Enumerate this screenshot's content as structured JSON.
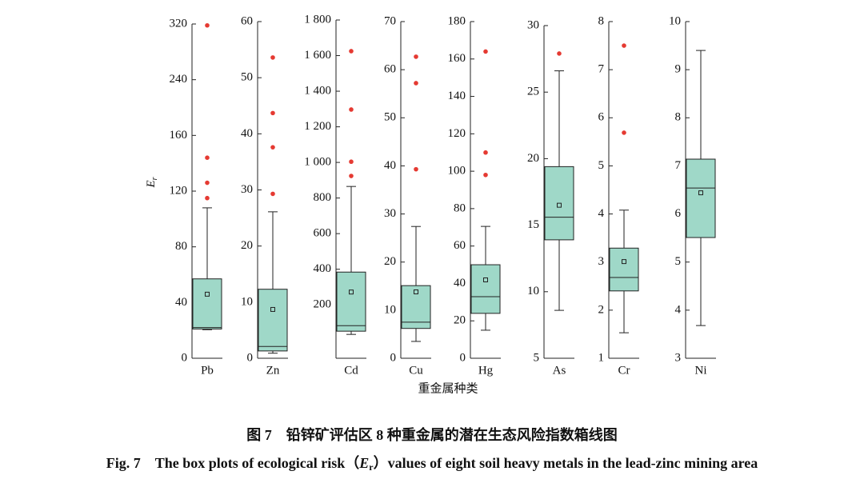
{
  "chart_data": [
    {
      "type": "box",
      "category": "Pb",
      "y_label": [
        "E",
        "r"
      ],
      "yscale": "tick-even",
      "ylim": [
        0,
        320
      ],
      "yticks": [
        0,
        40,
        80,
        120,
        160,
        240,
        320
      ],
      "whisker_low": 20.5,
      "q1": 21,
      "median": 22,
      "q3": 57,
      "whisker_high": 108,
      "mean": 46,
      "outliers": [
        318,
        144,
        126,
        115
      ],
      "color": "#9fd8c8",
      "outlier_color": "#e53a32"
    },
    {
      "type": "box",
      "category": "Zn",
      "yscale": "linear",
      "ylim": [
        0,
        60
      ],
      "yticks": [
        0,
        10,
        20,
        30,
        40,
        50,
        60
      ],
      "whisker_low": 0.9,
      "q1": 1.3,
      "median": 2.1,
      "q3": 12.3,
      "whisker_high": 26.1,
      "mean": 8.7,
      "outliers": [
        53.6,
        43.7,
        37.6,
        29.3
      ],
      "color": "#9fd8c8",
      "outlier_color": "#e53a32"
    },
    {
      "type": "box",
      "category": "Cd",
      "yscale": "linear",
      "ylim": [
        -100,
        1800
      ],
      "yticks": [
        200,
        400,
        600,
        800,
        {
          "value": 1000,
          "label": "1 000"
        },
        {
          "value": 1200,
          "label": "1 200"
        },
        {
          "value": 1400,
          "label": "1 400"
        },
        {
          "value": 1600,
          "label": "1 600"
        },
        {
          "value": 1800,
          "label": "1 800"
        }
      ],
      "whisker_low": 34,
      "q1": 52,
      "median": 83,
      "q3": 384,
      "whisker_high": 865,
      "mean": 272,
      "outliers": [
        1625,
        1297,
        1004,
        924
      ],
      "color": "#9fd8c8",
      "outlier_color": "#e53a32"
    },
    {
      "type": "box",
      "category": "Cu",
      "yscale": "linear",
      "ylim": [
        0,
        70
      ],
      "yticks": [
        0,
        10,
        20,
        30,
        40,
        50,
        60,
        70
      ],
      "whisker_low": 3.5,
      "q1": 6.2,
      "median": 7.5,
      "q3": 15.1,
      "whisker_high": 27.4,
      "mean": 13.8,
      "outliers": [
        62.7,
        57.2,
        39.3
      ],
      "color": "#9fd8c8",
      "outlier_color": "#e53a32"
    },
    {
      "type": "box",
      "category": "Hg",
      "yscale": "linear",
      "ylim": [
        0,
        180
      ],
      "yticks": [
        0,
        20,
        40,
        60,
        80,
        100,
        120,
        140,
        160,
        180
      ],
      "whisker_low": 15,
      "q1": 24,
      "median": 32.9,
      "q3": 50,
      "whisker_high": 70.5,
      "mean": 41.9,
      "outliers": [
        164,
        110,
        98
      ],
      "color": "#9fd8c8",
      "outlier_color": "#e53a32"
    },
    {
      "type": "box",
      "category": "As",
      "yscale": "linear",
      "ylim": [
        5,
        30
      ],
      "yticks": [
        5,
        10,
        15,
        20,
        25,
        30
      ],
      "whisker_low": 8.6,
      "q1": 13.9,
      "median": 15.6,
      "q3": 19.4,
      "whisker_high": 26.6,
      "mean": 16.5,
      "outliers": [
        27.9
      ],
      "color": "#9fd8c8",
      "outlier_color": "#e53a32"
    },
    {
      "type": "box",
      "category": "Cr",
      "yscale": "linear",
      "ylim": [
        1,
        8
      ],
      "yticks": [
        1,
        2,
        3,
        4,
        5,
        6,
        7,
        8
      ],
      "whisker_low": 1.53,
      "q1": 2.4,
      "median": 2.68,
      "q3": 3.29,
      "whisker_high": 4.08,
      "mean": 3.01,
      "outliers": [
        7.5,
        5.69
      ],
      "color": "#9fd8c8",
      "outlier_color": "#e53a32"
    },
    {
      "type": "box",
      "category": "Ni",
      "yscale": "linear",
      "ylim": [
        3,
        10
      ],
      "yticks": [
        3,
        4,
        5,
        6,
        7,
        8,
        9,
        10
      ],
      "whisker_low": 3.68,
      "q1": 5.51,
      "median": 6.54,
      "q3": 7.14,
      "whisker_high": 9.4,
      "mean": 6.44,
      "outliers": [],
      "color": "#9fd8c8",
      "outlier_color": "#e53a32"
    }
  ],
  "x_label": "重金属种类",
  "caption_cn": "图 7　铅锌矿评估区 8 种重金属的潜在生态风险指数箱线图",
  "caption_en": [
    "Fig. 7　The box plots of ecological risk（",
    "E",
    "r",
    "）values of eight soil heavy metals in the lead-zinc mining area"
  ]
}
